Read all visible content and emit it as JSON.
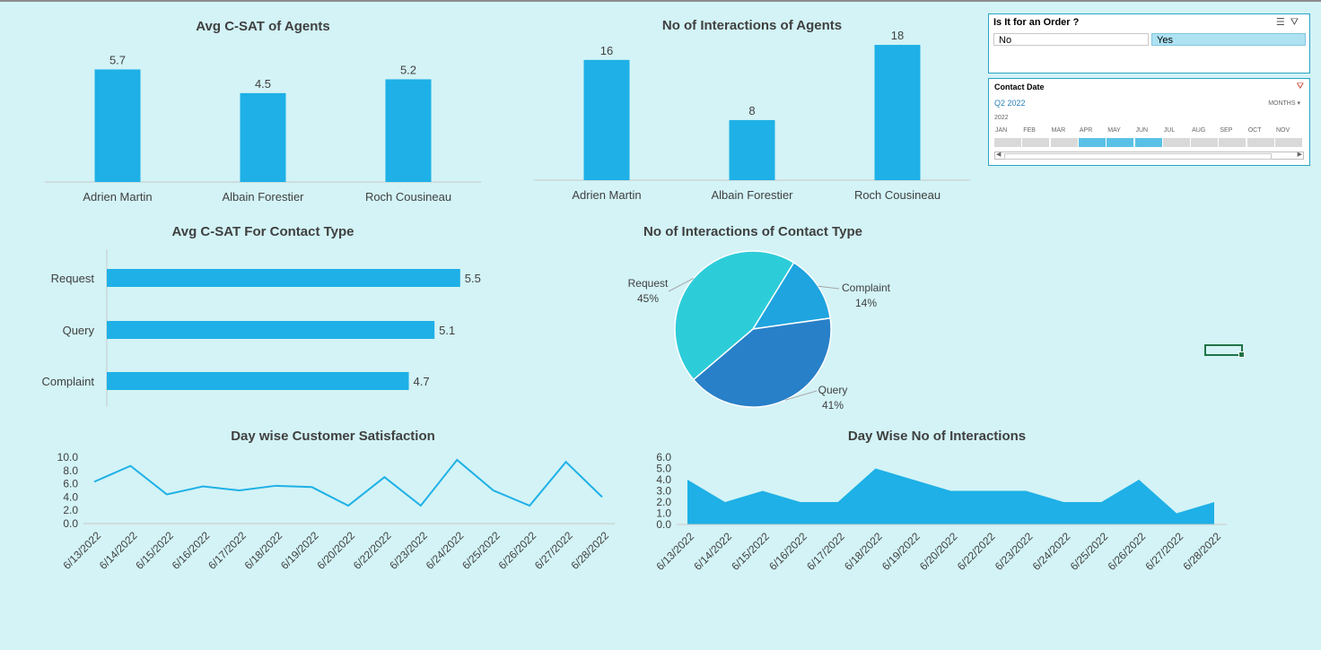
{
  "dashboard": {
    "slicer": {
      "title": "Is It for an Order ?",
      "icons": [
        "multi-select-icon",
        "clear-filter-icon"
      ],
      "options": [
        {
          "label": "No",
          "selected": false
        },
        {
          "label": "Yes",
          "selected": true
        }
      ]
    },
    "timeline": {
      "title": "Contact Date",
      "period": "Q2 2022",
      "level": "MONTHS",
      "year": "2022",
      "months": [
        "JAN",
        "FEB",
        "MAR",
        "APR",
        "MAY",
        "JUN",
        "JUL",
        "AUG",
        "SEP",
        "OCT",
        "NOV"
      ],
      "selected": [
        "APR",
        "MAY",
        "JUN"
      ]
    }
  },
  "colors": {
    "bar": "#1eb0e6",
    "pie_request": "#2ccdd9",
    "pie_complaint": "#1fa4e0",
    "pie_query": "#2880c8",
    "background": "#d3f3f6"
  },
  "chart_data": [
    {
      "id": "csat_agents",
      "type": "bar",
      "title": "Avg C-SAT of Agents",
      "categories": [
        "Adrien Martin",
        "Albain Forestier",
        "Roch Cousineau"
      ],
      "values": [
        5.7,
        4.5,
        5.2
      ],
      "data_labels": [
        "5.7",
        "4.5",
        "5.2"
      ]
    },
    {
      "id": "interactions_agents",
      "type": "bar",
      "title": "No of Interactions of Agents",
      "categories": [
        "Adrien Martin",
        "Albain Forestier",
        "Roch Cousineau"
      ],
      "values": [
        16,
        8,
        18
      ],
      "data_labels": [
        "16",
        "8",
        "18"
      ]
    },
    {
      "id": "csat_contact_type",
      "type": "bar",
      "orientation": "horizontal",
      "title": "Avg C-SAT For Contact Type",
      "categories": [
        "Request",
        "Query",
        "Complaint"
      ],
      "values": [
        5.5,
        5.1,
        4.7
      ],
      "data_labels": [
        "5.5",
        "5.1",
        "4.7"
      ]
    },
    {
      "id": "interactions_contact_type",
      "type": "pie",
      "title": "No of Interactions of Contact Type",
      "slices": [
        {
          "label": "Complaint",
          "value": 14,
          "pct": "14%"
        },
        {
          "label": "Query",
          "value": 41,
          "pct": "41%"
        },
        {
          "label": "Request",
          "value": 45,
          "pct": "45%"
        }
      ]
    },
    {
      "id": "day_csat",
      "type": "line",
      "title": "Day wise Customer Satisfaction",
      "x": [
        "6/13/2022",
        "6/14/2022",
        "6/15/2022",
        "6/16/2022",
        "6/17/2022",
        "6/18/2022",
        "6/19/2022",
        "6/20/2022",
        "6/22/2022",
        "6/23/2022",
        "6/24/2022",
        "6/25/2022",
        "6/26/2022",
        "6/27/2022",
        "6/28/2022"
      ],
      "values": [
        6.3,
        8.7,
        4.4,
        5.6,
        5.0,
        5.7,
        5.5,
        2.7,
        7.0,
        2.7,
        9.6,
        5.0,
        2.7,
        9.3,
        4.0
      ],
      "yticks": [
        "10.0",
        "8.0",
        "6.0",
        "4.0",
        "2.0",
        "0.0"
      ],
      "ylim": [
        0,
        10
      ]
    },
    {
      "id": "day_interactions",
      "type": "area",
      "title": "Day Wise No of Interactions",
      "x": [
        "6/13/2022",
        "6/14/2022",
        "6/15/2022",
        "6/16/2022",
        "6/17/2022",
        "6/18/2022",
        "6/19/2022",
        "6/20/2022",
        "6/22/2022",
        "6/23/2022",
        "6/24/2022",
        "6/25/2022",
        "6/26/2022",
        "6/27/2022",
        "6/28/2022"
      ],
      "values": [
        4,
        2,
        3,
        2,
        2,
        5,
        4,
        3,
        3,
        3,
        2,
        2,
        4,
        1,
        2
      ],
      "yticks": [
        "6.0",
        "5.0",
        "4.0",
        "3.0",
        "2.0",
        "1.0",
        "0.0"
      ],
      "ylim": [
        0,
        6
      ]
    }
  ]
}
